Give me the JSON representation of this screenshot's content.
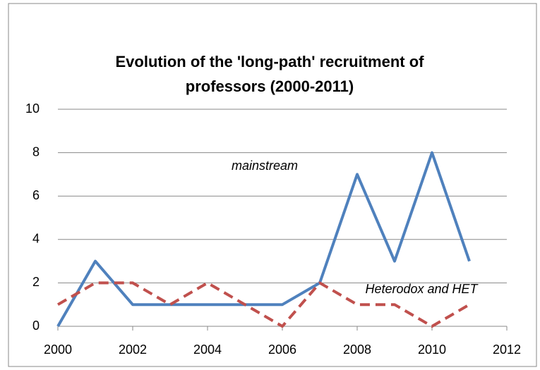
{
  "chart_data": {
    "type": "line",
    "title": "Evolution of the 'long-path' recruitment of professors (2000-2011)",
    "x": [
      2000,
      2001,
      2002,
      2003,
      2004,
      2005,
      2006,
      2007,
      2008,
      2009,
      2010,
      2011
    ],
    "series": [
      {
        "name": "mainstream",
        "color": "#4f81bd",
        "dashed": false,
        "values": [
          0,
          3,
          1,
          1,
          1,
          1,
          1,
          2,
          7,
          3,
          8,
          3
        ]
      },
      {
        "name": "Heterodox and HET",
        "color": "#c0504d",
        "dashed": true,
        "values": [
          1,
          2,
          2,
          1,
          2,
          1,
          0,
          2,
          1,
          1,
          0,
          1
        ]
      }
    ],
    "xlim": [
      2000,
      2012
    ],
    "xticks": [
      2000,
      2002,
      2004,
      2006,
      2008,
      2010,
      2012
    ],
    "ylim": [
      0,
      10
    ],
    "yticks": [
      0,
      2,
      4,
      6,
      8,
      10
    ],
    "grid": true
  }
}
